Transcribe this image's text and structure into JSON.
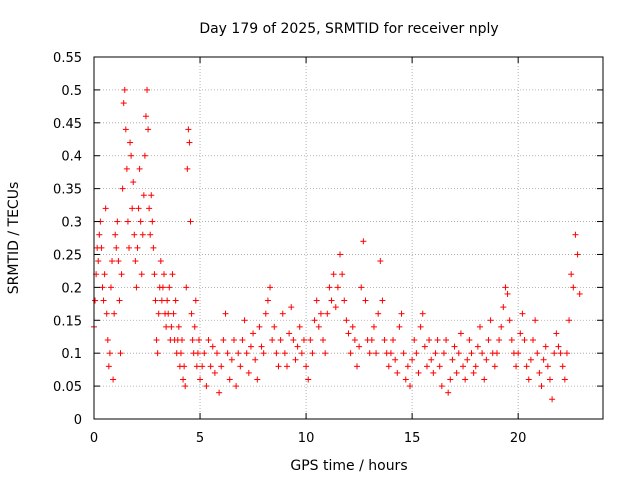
{
  "chart_data": {
    "type": "scatter",
    "title": "Day 179 of 2025, SRMTID for receiver nply",
    "xlabel": "GPS time / hours",
    "ylabel": "SRMTID / TECUs",
    "xlim": [
      0,
      24
    ],
    "ylim": [
      0,
      0.55
    ],
    "x_ticks": [
      "0",
      "5",
      "10",
      "15",
      "20"
    ],
    "x_tick_values": [
      0,
      5,
      10,
      15,
      20
    ],
    "y_ticks": [
      "0",
      "0.05",
      "0.1",
      "0.15",
      "0.2",
      "0.25",
      "0.3",
      "0.35",
      "0.4",
      "0.45",
      "0.5",
      "0.55"
    ],
    "y_tick_values": [
      0,
      0.05,
      0.1,
      0.15,
      0.2,
      0.25,
      0.3,
      0.35,
      0.4,
      0.45,
      0.5,
      0.55
    ],
    "grid": true,
    "marker": "+",
    "color": "#ff0000",
    "series": [
      {
        "name": "SRMTID",
        "points": [
          [
            0.0,
            0.14
          ],
          [
            0.05,
            0.18
          ],
          [
            0.1,
            0.22
          ],
          [
            0.15,
            0.26
          ],
          [
            0.2,
            0.24
          ],
          [
            0.25,
            0.28
          ],
          [
            0.3,
            0.3
          ],
          [
            0.35,
            0.26
          ],
          [
            0.4,
            0.2
          ],
          [
            0.45,
            0.18
          ],
          [
            0.5,
            0.22
          ],
          [
            0.55,
            0.32
          ],
          [
            0.6,
            0.16
          ],
          [
            0.65,
            0.12
          ],
          [
            0.7,
            0.08
          ],
          [
            0.75,
            0.1
          ],
          [
            0.8,
            0.2
          ],
          [
            0.85,
            0.24
          ],
          [
            0.9,
            0.06
          ],
          [
            0.95,
            0.16
          ],
          [
            1.0,
            0.28
          ],
          [
            1.05,
            0.26
          ],
          [
            1.1,
            0.3
          ],
          [
            1.15,
            0.24
          ],
          [
            1.2,
            0.18
          ],
          [
            1.25,
            0.1
          ],
          [
            1.3,
            0.22
          ],
          [
            1.35,
            0.35
          ],
          [
            1.4,
            0.48
          ],
          [
            1.45,
            0.5
          ],
          [
            1.5,
            0.44
          ],
          [
            1.55,
            0.38
          ],
          [
            1.6,
            0.3
          ],
          [
            1.65,
            0.26
          ],
          [
            1.7,
            0.42
          ],
          [
            1.75,
            0.4
          ],
          [
            1.8,
            0.32
          ],
          [
            1.85,
            0.36
          ],
          [
            1.9,
            0.28
          ],
          [
            1.95,
            0.24
          ],
          [
            2.0,
            0.2
          ],
          [
            2.05,
            0.26
          ],
          [
            2.1,
            0.32
          ],
          [
            2.15,
            0.38
          ],
          [
            2.2,
            0.3
          ],
          [
            2.25,
            0.22
          ],
          [
            2.3,
            0.28
          ],
          [
            2.35,
            0.34
          ],
          [
            2.4,
            0.4
          ],
          [
            2.45,
            0.46
          ],
          [
            2.5,
            0.5
          ],
          [
            2.55,
            0.44
          ],
          [
            2.6,
            0.32
          ],
          [
            2.65,
            0.28
          ],
          [
            2.7,
            0.34
          ],
          [
            2.75,
            0.3
          ],
          [
            2.8,
            0.26
          ],
          [
            2.85,
            0.22
          ],
          [
            2.9,
            0.18
          ],
          [
            2.95,
            0.12
          ],
          [
            3.0,
            0.1
          ],
          [
            3.05,
            0.16
          ],
          [
            3.1,
            0.2
          ],
          [
            3.15,
            0.24
          ],
          [
            3.2,
            0.18
          ],
          [
            3.25,
            0.2
          ],
          [
            3.3,
            0.22
          ],
          [
            3.35,
            0.16
          ],
          [
            3.4,
            0.14
          ],
          [
            3.45,
            0.18
          ],
          [
            3.5,
            0.16
          ],
          [
            3.55,
            0.2
          ],
          [
            3.6,
            0.12
          ],
          [
            3.65,
            0.14
          ],
          [
            3.7,
            0.22
          ],
          [
            3.75,
            0.16
          ],
          [
            3.8,
            0.12
          ],
          [
            3.85,
            0.18
          ],
          [
            3.9,
            0.1
          ],
          [
            3.95,
            0.12
          ],
          [
            4.0,
            0.14
          ],
          [
            4.05,
            0.08
          ],
          [
            4.1,
            0.1
          ],
          [
            4.15,
            0.12
          ],
          [
            4.2,
            0.06
          ],
          [
            4.25,
            0.08
          ],
          [
            4.3,
            0.05
          ],
          [
            4.35,
            0.2
          ],
          [
            4.4,
            0.38
          ],
          [
            4.45,
            0.44
          ],
          [
            4.5,
            0.42
          ],
          [
            4.55,
            0.3
          ],
          [
            4.6,
            0.16
          ],
          [
            4.65,
            0.12
          ],
          [
            4.7,
            0.1
          ],
          [
            4.75,
            0.14
          ],
          [
            4.8,
            0.18
          ],
          [
            4.85,
            0.08
          ],
          [
            4.9,
            0.1
          ],
          [
            4.95,
            0.12
          ],
          [
            5.0,
            0.06
          ],
          [
            5.1,
            0.08
          ],
          [
            5.2,
            0.1
          ],
          [
            5.3,
            0.05
          ],
          [
            5.4,
            0.12
          ],
          [
            5.5,
            0.08
          ],
          [
            5.6,
            0.11
          ],
          [
            5.7,
            0.07
          ],
          [
            5.8,
            0.1
          ],
          [
            5.9,
            0.04
          ],
          [
            6.0,
            0.08
          ],
          [
            6.1,
            0.12
          ],
          [
            6.2,
            0.16
          ],
          [
            6.3,
            0.1
          ],
          [
            6.4,
            0.06
          ],
          [
            6.5,
            0.09
          ],
          [
            6.6,
            0.12
          ],
          [
            6.7,
            0.05
          ],
          [
            6.8,
            0.1
          ],
          [
            6.9,
            0.08
          ],
          [
            7.0,
            0.12
          ],
          [
            7.1,
            0.15
          ],
          [
            7.2,
            0.1
          ],
          [
            7.3,
            0.07
          ],
          [
            7.4,
            0.11
          ],
          [
            7.5,
            0.13
          ],
          [
            7.6,
            0.09
          ],
          [
            7.7,
            0.06
          ],
          [
            7.8,
            0.14
          ],
          [
            7.9,
            0.11
          ],
          [
            8.0,
            0.1
          ],
          [
            8.1,
            0.16
          ],
          [
            8.2,
            0.18
          ],
          [
            8.3,
            0.2
          ],
          [
            8.4,
            0.12
          ],
          [
            8.5,
            0.14
          ],
          [
            8.6,
            0.1
          ],
          [
            8.7,
            0.08
          ],
          [
            8.8,
            0.12
          ],
          [
            8.9,
            0.16
          ],
          [
            9.0,
            0.1
          ],
          [
            9.1,
            0.08
          ],
          [
            9.2,
            0.13
          ],
          [
            9.3,
            0.17
          ],
          [
            9.4,
            0.12
          ],
          [
            9.5,
            0.09
          ],
          [
            9.6,
            0.11
          ],
          [
            9.7,
            0.14
          ],
          [
            9.8,
            0.1
          ],
          [
            9.9,
            0.12
          ],
          [
            10.0,
            0.08
          ],
          [
            10.1,
            0.06
          ],
          [
            10.2,
            0.12
          ],
          [
            10.3,
            0.1
          ],
          [
            10.4,
            0.15
          ],
          [
            10.5,
            0.18
          ],
          [
            10.6,
            0.14
          ],
          [
            10.7,
            0.16
          ],
          [
            10.8,
            0.12
          ],
          [
            10.9,
            0.1
          ],
          [
            11.0,
            0.16
          ],
          [
            11.1,
            0.2
          ],
          [
            11.2,
            0.18
          ],
          [
            11.3,
            0.22
          ],
          [
            11.4,
            0.17
          ],
          [
            11.5,
            0.2
          ],
          [
            11.6,
            0.25
          ],
          [
            11.7,
            0.22
          ],
          [
            11.8,
            0.18
          ],
          [
            11.9,
            0.15
          ],
          [
            12.0,
            0.13
          ],
          [
            12.1,
            0.1
          ],
          [
            12.2,
            0.14
          ],
          [
            12.3,
            0.12
          ],
          [
            12.4,
            0.08
          ],
          [
            12.5,
            0.11
          ],
          [
            12.6,
            0.2
          ],
          [
            12.7,
            0.27
          ],
          [
            12.8,
            0.18
          ],
          [
            12.9,
            0.12
          ],
          [
            13.0,
            0.1
          ],
          [
            13.1,
            0.12
          ],
          [
            13.2,
            0.14
          ],
          [
            13.3,
            0.1
          ],
          [
            13.4,
            0.16
          ],
          [
            13.5,
            0.24
          ],
          [
            13.6,
            0.18
          ],
          [
            13.7,
            0.12
          ],
          [
            13.8,
            0.1
          ],
          [
            13.9,
            0.08
          ],
          [
            14.0,
            0.1
          ],
          [
            14.1,
            0.12
          ],
          [
            14.2,
            0.09
          ],
          [
            14.3,
            0.07
          ],
          [
            14.4,
            0.14
          ],
          [
            14.5,
            0.16
          ],
          [
            14.6,
            0.1
          ],
          [
            14.7,
            0.06
          ],
          [
            14.8,
            0.08
          ],
          [
            14.9,
            0.05
          ],
          [
            15.0,
            0.09
          ],
          [
            15.1,
            0.12
          ],
          [
            15.2,
            0.1
          ],
          [
            15.3,
            0.07
          ],
          [
            15.4,
            0.14
          ],
          [
            15.5,
            0.16
          ],
          [
            15.6,
            0.11
          ],
          [
            15.7,
            0.08
          ],
          [
            15.8,
            0.12
          ],
          [
            15.9,
            0.09
          ],
          [
            16.0,
            0.07
          ],
          [
            16.1,
            0.1
          ],
          [
            16.2,
            0.12
          ],
          [
            16.3,
            0.08
          ],
          [
            16.4,
            0.05
          ],
          [
            16.5,
            0.1
          ],
          [
            16.6,
            0.12
          ],
          [
            16.7,
            0.04
          ],
          [
            16.8,
            0.06
          ],
          [
            16.9,
            0.09
          ],
          [
            17.0,
            0.11
          ],
          [
            17.1,
            0.07
          ],
          [
            17.2,
            0.1
          ],
          [
            17.3,
            0.13
          ],
          [
            17.4,
            0.08
          ],
          [
            17.5,
            0.06
          ],
          [
            17.6,
            0.09
          ],
          [
            17.7,
            0.12
          ],
          [
            17.8,
            0.1
          ],
          [
            17.9,
            0.07
          ],
          [
            18.0,
            0.08
          ],
          [
            18.1,
            0.11
          ],
          [
            18.2,
            0.14
          ],
          [
            18.3,
            0.1
          ],
          [
            18.4,
            0.06
          ],
          [
            18.5,
            0.09
          ],
          [
            18.6,
            0.12
          ],
          [
            18.7,
            0.15
          ],
          [
            18.8,
            0.1
          ],
          [
            18.9,
            0.08
          ],
          [
            19.0,
            0.1
          ],
          [
            19.1,
            0.12
          ],
          [
            19.2,
            0.14
          ],
          [
            19.3,
            0.17
          ],
          [
            19.4,
            0.2
          ],
          [
            19.5,
            0.19
          ],
          [
            19.6,
            0.15
          ],
          [
            19.7,
            0.12
          ],
          [
            19.8,
            0.1
          ],
          [
            19.9,
            0.08
          ],
          [
            20.0,
            0.1
          ],
          [
            20.1,
            0.13
          ],
          [
            20.2,
            0.16
          ],
          [
            20.3,
            0.12
          ],
          [
            20.4,
            0.08
          ],
          [
            20.5,
            0.06
          ],
          [
            20.6,
            0.09
          ],
          [
            20.7,
            0.12
          ],
          [
            20.8,
            0.15
          ],
          [
            20.9,
            0.1
          ],
          [
            21.0,
            0.07
          ],
          [
            21.1,
            0.05
          ],
          [
            21.2,
            0.09
          ],
          [
            21.3,
            0.11
          ],
          [
            21.4,
            0.08
          ],
          [
            21.5,
            0.06
          ],
          [
            21.6,
            0.03
          ],
          [
            21.7,
            0.1
          ],
          [
            21.8,
            0.13
          ],
          [
            21.9,
            0.11
          ],
          [
            22.0,
            0.1
          ],
          [
            22.1,
            0.08
          ],
          [
            22.2,
            0.06
          ],
          [
            22.3,
            0.1
          ],
          [
            22.4,
            0.15
          ],
          [
            22.5,
            0.22
          ],
          [
            22.6,
            0.2
          ],
          [
            22.7,
            0.28
          ],
          [
            22.8,
            0.25
          ],
          [
            22.9,
            0.19
          ]
        ]
      }
    ]
  }
}
